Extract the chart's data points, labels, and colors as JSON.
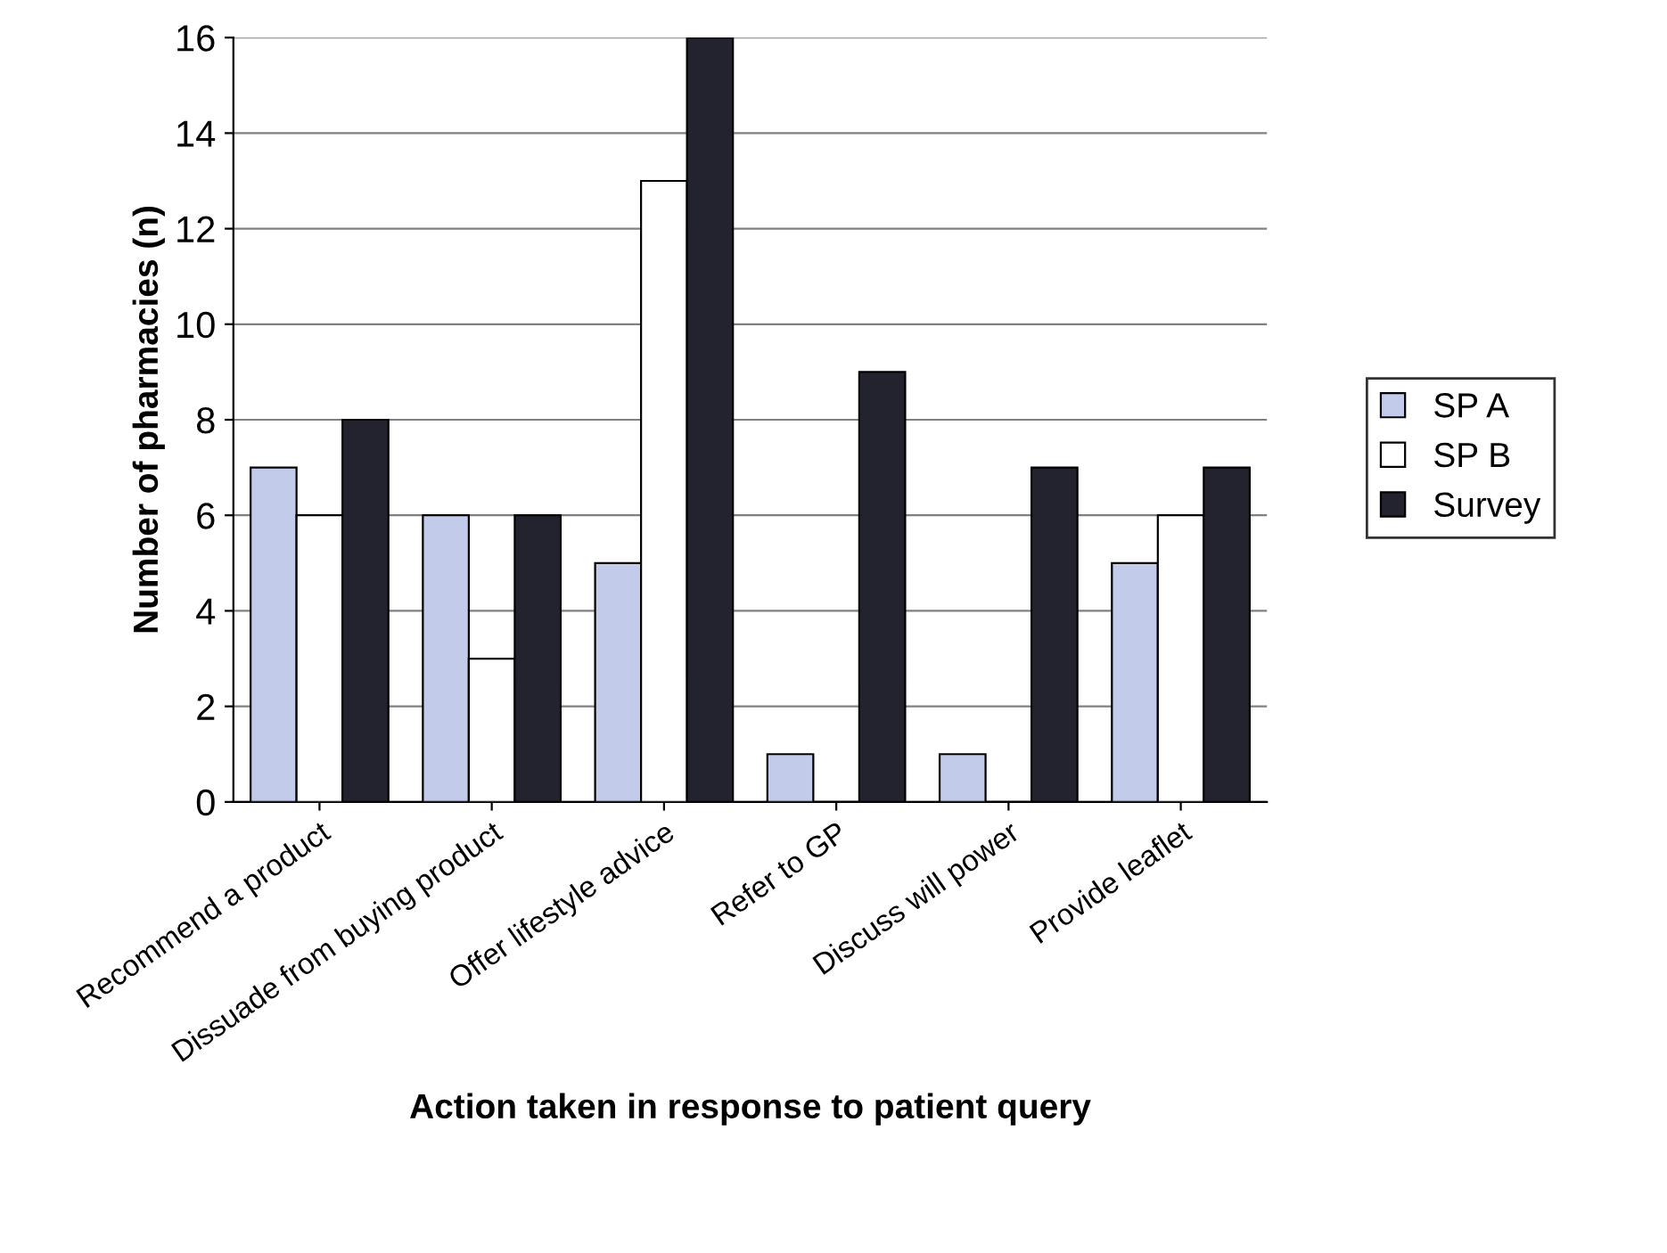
{
  "chart_data": {
    "type": "bar",
    "xlabel": "Action taken in response to patient query",
    "ylabel": "Number of pharmacies (n)",
    "categories": [
      "Recommend a product",
      "Dissuade from buying product",
      "Offer lifestyle advice",
      "Refer to GP",
      "Discuss will power",
      "Provide leaflet"
    ],
    "series": [
      {
        "name": "SP A",
        "color": "#c3cbeb",
        "values": [
          7,
          6,
          5,
          1,
          1,
          5
        ]
      },
      {
        "name": "SP B",
        "color": "#ffffff",
        "values": [
          6,
          3,
          13,
          0,
          0,
          6
        ]
      },
      {
        "name": "Survey",
        "color": "#23232f",
        "values": [
          8,
          6,
          16,
          9,
          7,
          7
        ]
      }
    ],
    "ylim": [
      0,
      16
    ],
    "yticks": [
      0,
      2,
      4,
      6,
      8,
      10,
      12,
      14,
      16
    ],
    "grid": "y",
    "legend": "right"
  }
}
